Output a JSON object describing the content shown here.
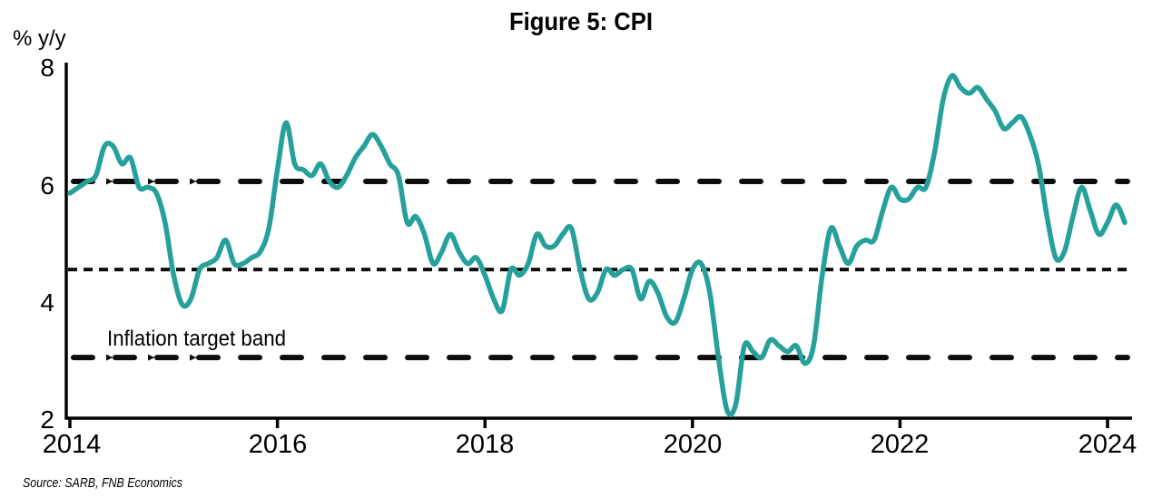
{
  "title": "Figure 5: CPI",
  "y_axis_unit_label": "% y/y",
  "annotations": {
    "inflation_band_label": "Inflation target band"
  },
  "source": "Source: SARB, FNB Economics",
  "colors": {
    "title": "#14a3ae",
    "line": "#26a09b",
    "axis": "#000000",
    "band_lines": "#0d0d0d",
    "source_text": "#55565a"
  },
  "chart_data": {
    "type": "line",
    "title": "Figure 5: CPI",
    "xlabel": "",
    "ylabel": "% y/y",
    "ylim": [
      2,
      8
    ],
    "xlim": [
      2014,
      2024.4
    ],
    "grid": false,
    "legend": "none",
    "x_tick_labels": [
      "2014",
      "2016",
      "2018",
      "2020",
      "2022",
      "2024"
    ],
    "y_tick_labels": [
      "8",
      "6",
      "4",
      "2"
    ],
    "x_monthly_start": "2014-01",
    "x_monthly_end": "2024-03",
    "reference_lines": [
      {
        "name": "inflation-target-upper",
        "value": 6,
        "style": "long-dash"
      },
      {
        "name": "inflation-target-midpoint",
        "value": 4.5,
        "style": "dotted"
      },
      {
        "name": "inflation-target-lower",
        "value": 3,
        "style": "long-dash"
      }
    ],
    "series": [
      {
        "name": "CPI % y/y",
        "monthly_values": [
          5.8,
          5.9,
          6.0,
          6.1,
          6.6,
          6.6,
          6.3,
          6.4,
          5.9,
          5.9,
          5.8,
          5.3,
          4.4,
          3.9,
          4.0,
          4.5,
          4.6,
          4.7,
          5.0,
          4.6,
          4.6,
          4.7,
          4.8,
          5.2,
          6.2,
          7.0,
          6.3,
          6.2,
          6.1,
          6.3,
          6.0,
          5.9,
          6.1,
          6.4,
          6.6,
          6.8,
          6.6,
          6.3,
          6.1,
          5.3,
          5.4,
          5.1,
          4.6,
          4.8,
          5.1,
          4.8,
          4.6,
          4.7,
          4.4,
          4.0,
          3.8,
          4.5,
          4.4,
          4.6,
          5.1,
          4.9,
          4.9,
          5.1,
          5.2,
          4.5,
          4.0,
          4.1,
          4.5,
          4.4,
          4.5,
          4.5,
          4.0,
          4.3,
          4.1,
          3.7,
          3.6,
          4.0,
          4.5,
          4.6,
          4.1,
          3.0,
          2.1,
          2.2,
          3.2,
          3.1,
          3.0,
          3.3,
          3.2,
          3.1,
          3.2,
          2.9,
          3.2,
          4.4,
          5.2,
          4.9,
          4.6,
          4.9,
          5.0,
          5.0,
          5.5,
          5.9,
          5.7,
          5.7,
          5.9,
          5.9,
          6.5,
          7.4,
          7.8,
          7.6,
          7.5,
          7.6,
          7.4,
          7.2,
          6.9,
          7.0,
          7.1,
          6.8,
          6.3,
          5.4,
          4.7,
          4.8,
          5.4,
          5.9,
          5.5,
          5.1,
          5.3,
          5.6,
          5.3
        ]
      }
    ]
  }
}
